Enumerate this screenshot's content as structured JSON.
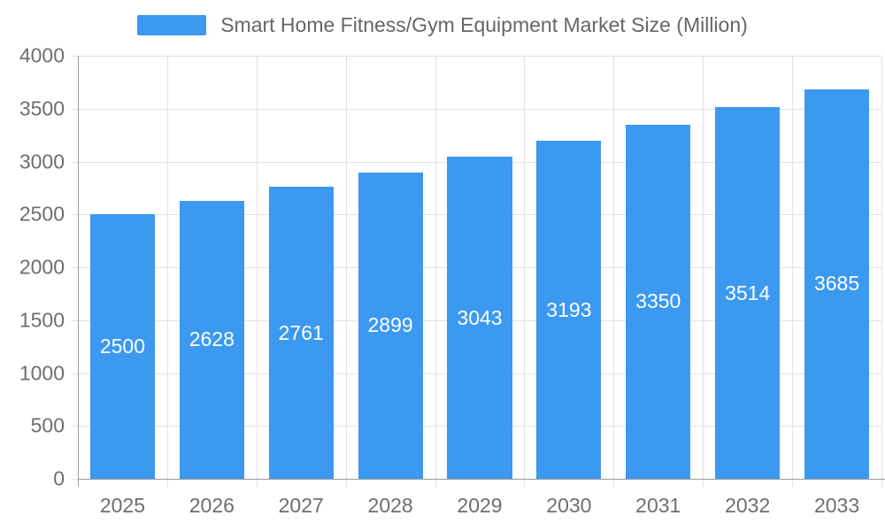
{
  "chart_data": {
    "type": "bar",
    "title": "Smart Home Fitness/Gym Equipment Market Size (Million)",
    "categories": [
      "2025",
      "2026",
      "2027",
      "2028",
      "2029",
      "2030",
      "2031",
      "2032",
      "2033"
    ],
    "values": [
      2500,
      2628,
      2761,
      2899,
      3043,
      3193,
      3350,
      3514,
      3685
    ],
    "xlabel": "",
    "ylabel": "",
    "ylim": [
      0,
      4000
    ],
    "yticks": [
      0,
      500,
      1000,
      1500,
      2000,
      2500,
      3000,
      3500,
      4000
    ],
    "grid": true,
    "legend_position": "top",
    "value_labels": "inside-center",
    "colors": {
      "bar": "#3b99f0",
      "bar_label": "#ffffff",
      "axis": "#999999",
      "grid": "#e2e2e2",
      "tick": "#d9d9d9",
      "text": "#6e6e6e",
      "legend_text": "#666666",
      "background": "#ffffff"
    }
  }
}
